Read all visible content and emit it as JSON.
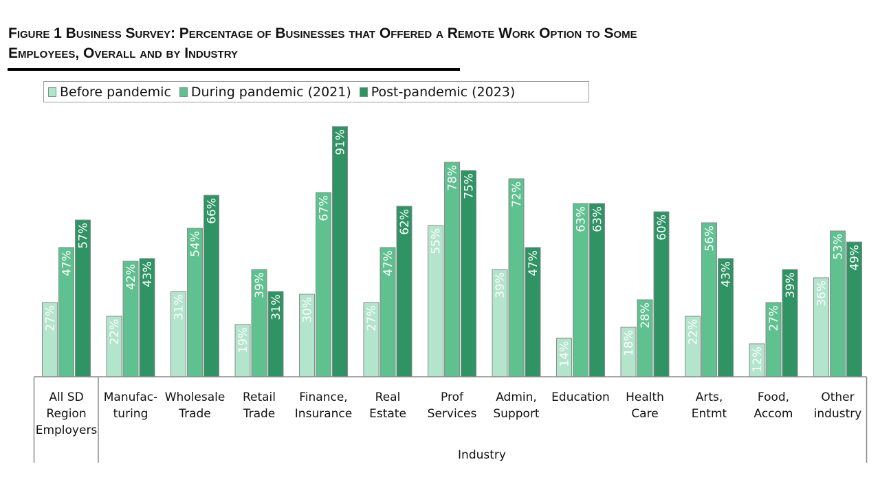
{
  "figure": {
    "title_line1": "Figure 1  Business Survey: Percentage of Businesses that Offered a Remote Work Option to Some",
    "title_line2": "Employees, Overall and by Industry"
  },
  "colors": {
    "before": "#b3e4cc",
    "during": "#5ec18f",
    "post": "#2f9364",
    "bar_outline": "#8a8a8a",
    "axis": "#8a8a8a"
  },
  "chart_data": {
    "type": "bar",
    "title": "Business Survey: Percentage of Businesses that Offered a Remote Work Option to Some Employees, Overall and by Industry",
    "xlabel": "Industry",
    "ylabel": "",
    "ylim": [
      0,
      100
    ],
    "grid": false,
    "legend_position": "top-left",
    "categories": [
      [
        "All SD",
        "Region",
        "Employers"
      ],
      [
        "Manufac-",
        "turing"
      ],
      [
        "Wholesale",
        "Trade"
      ],
      [
        "Retail",
        "Trade"
      ],
      [
        "Finance,",
        "Insurance"
      ],
      [
        "Real",
        "Estate"
      ],
      [
        "Prof",
        "Services"
      ],
      [
        "Admin,",
        "Support"
      ],
      [
        "Education"
      ],
      [
        "Health",
        "Care"
      ],
      [
        "Arts,",
        "Entmt"
      ],
      [
        "Food,",
        "Accom"
      ],
      [
        "Other",
        "industry"
      ]
    ],
    "series": [
      {
        "name": "Before pandemic",
        "key": "before",
        "values": [
          27,
          22,
          31,
          19,
          30,
          27,
          55,
          39,
          14,
          18,
          22,
          12,
          36
        ]
      },
      {
        "name": "During pandemic (2021)",
        "key": "during",
        "values": [
          47,
          42,
          54,
          39,
          67,
          47,
          78,
          72,
          63,
          28,
          56,
          27,
          53
        ]
      },
      {
        "name": "Post-pandemic (2023)",
        "key": "post",
        "values": [
          57,
          43,
          66,
          31,
          91,
          62,
          75,
          47,
          63,
          60,
          43,
          39,
          49
        ]
      }
    ],
    "value_suffix": "%"
  }
}
